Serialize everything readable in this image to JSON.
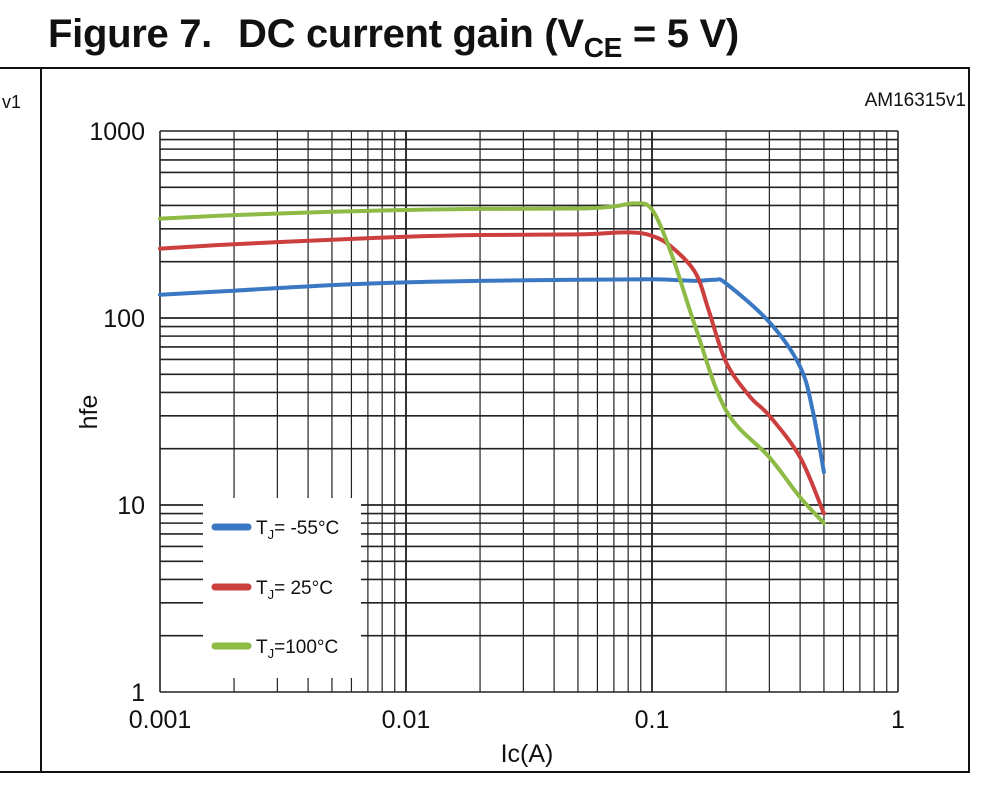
{
  "figure": {
    "number": "Figure 7.",
    "title_main": "DC current gain (V",
    "title_sub": "CE",
    "title_end": " = 5 V)",
    "code": "AM16315v1",
    "left_code_fragment": "v1"
  },
  "colors": {
    "blue": "#3a78c3",
    "red": "#cc3f3f",
    "green": "#8dbb45",
    "grid": "#222222"
  },
  "chart_data": {
    "type": "line",
    "title": "DC current gain (VCE = 5 V)",
    "xlabel": "Ic(A)",
    "ylabel": "hfe",
    "xscale": "log",
    "yscale": "log",
    "xlim": [
      0.001,
      1
    ],
    "ylim": [
      1,
      1000
    ],
    "grid": true,
    "legend_position": "bottom-left",
    "x_ticks": [
      {
        "value": 0.001,
        "label": "0.001"
      },
      {
        "value": 0.01,
        "label": "0.01"
      },
      {
        "value": 0.1,
        "label": "0.1"
      },
      {
        "value": 1,
        "label": "1"
      }
    ],
    "y_ticks": [
      {
        "value": 1,
        "label": "1"
      },
      {
        "value": 10,
        "label": "10"
      },
      {
        "value": 100,
        "label": "100"
      },
      {
        "value": 1000,
        "label": "1000"
      }
    ],
    "series": [
      {
        "name": "TJ= -55°C",
        "legend_main": "T",
        "legend_sub": "J",
        "legend_rest": "= -55°C",
        "color": "#3a78c3",
        "x": [
          0.001,
          0.002,
          0.005,
          0.01,
          0.02,
          0.05,
          0.1,
          0.15,
          0.18,
          0.2,
          0.3,
          0.4,
          0.45,
          0.5
        ],
        "y": [
          133,
          140,
          150,
          155,
          158,
          160,
          161,
          158,
          160,
          153,
          95,
          55,
          32,
          15
        ]
      },
      {
        "name": "TJ= 25°C",
        "legend_main": "T",
        "legend_sub": "J",
        "legend_rest": "= 25°C",
        "color": "#cc3f3f",
        "x": [
          0.001,
          0.002,
          0.005,
          0.01,
          0.02,
          0.05,
          0.08,
          0.1,
          0.12,
          0.15,
          0.17,
          0.2,
          0.25,
          0.3,
          0.4,
          0.5
        ],
        "y": [
          235,
          248,
          262,
          272,
          278,
          280,
          287,
          275,
          240,
          175,
          110,
          58,
          38,
          30,
          18,
          9
        ]
      },
      {
        "name": "TJ=100°C",
        "legend_main": "T",
        "legend_sub": "J",
        "legend_rest": "=100°C",
        "color": "#8dbb45",
        "x": [
          0.001,
          0.002,
          0.005,
          0.01,
          0.02,
          0.05,
          0.07,
          0.085,
          0.1,
          0.12,
          0.15,
          0.2,
          0.3,
          0.4,
          0.5
        ],
        "y": [
          340,
          355,
          370,
          378,
          383,
          385,
          395,
          410,
          380,
          220,
          90,
          32,
          18,
          11,
          8
        ]
      }
    ]
  }
}
